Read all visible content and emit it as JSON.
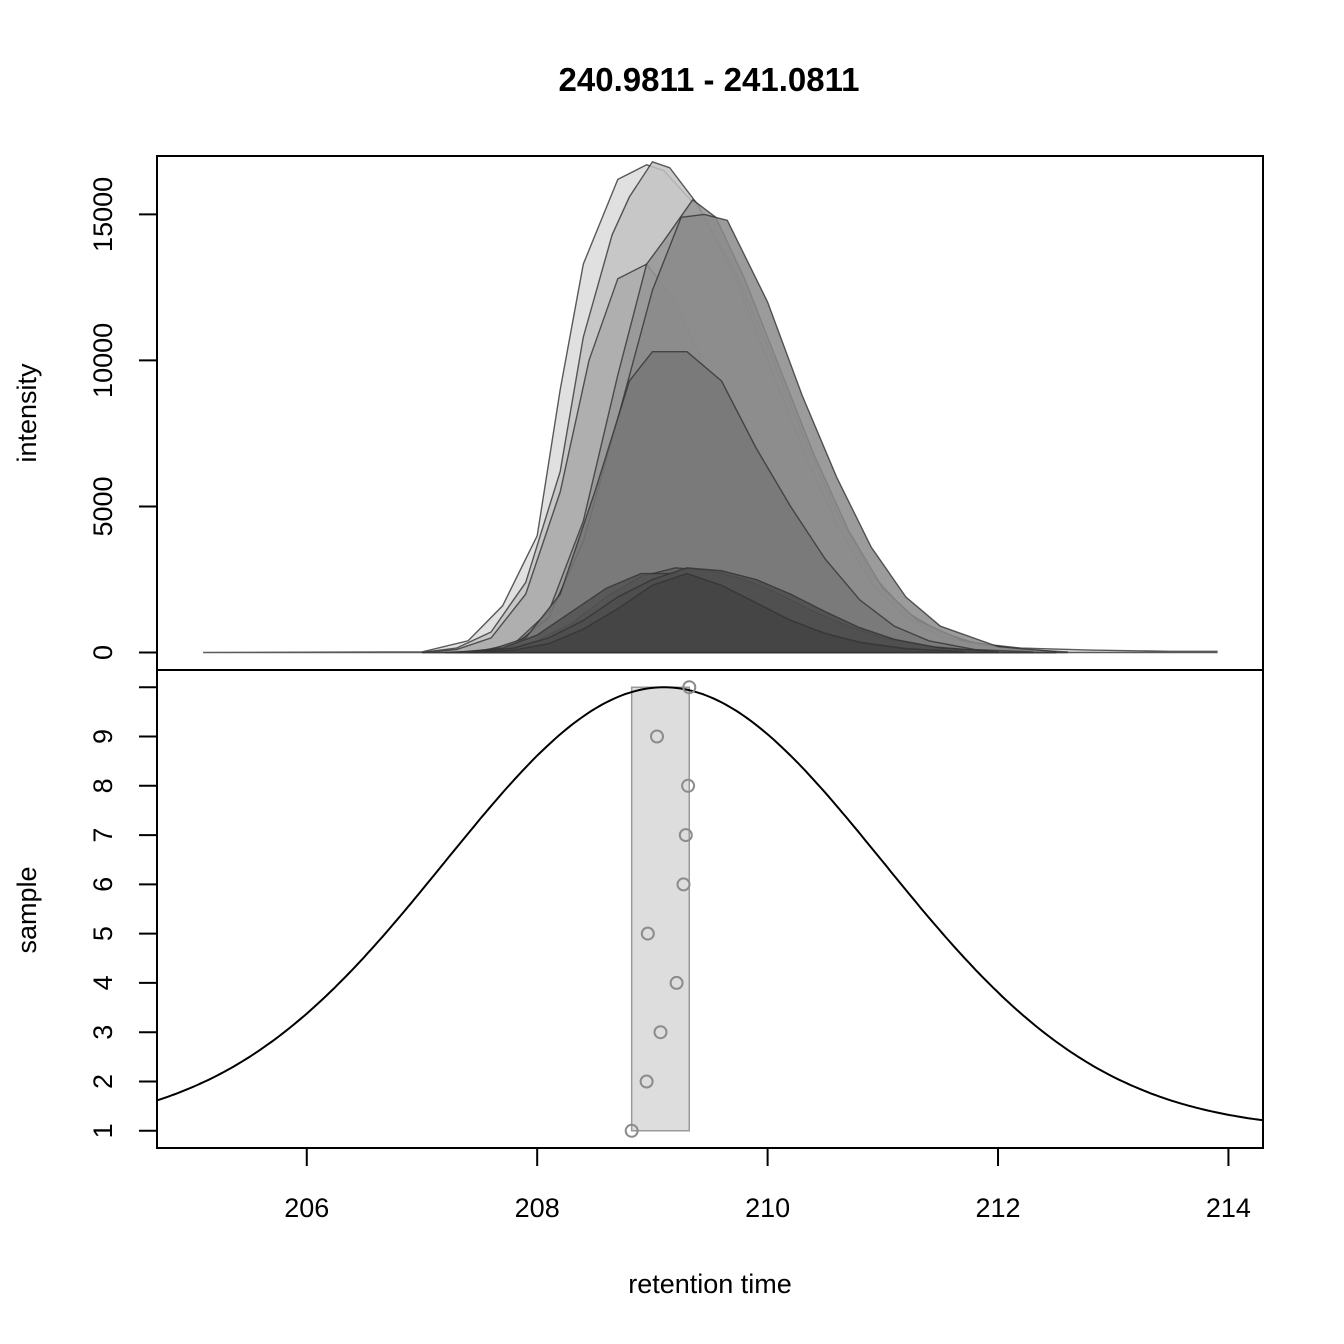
{
  "chart_data": [
    {
      "panel": "top",
      "type": "area",
      "title": "240.9811 - 241.0811",
      "xlabel": "",
      "ylabel": "intensity",
      "xlim": [
        204.7,
        214.3
      ],
      "ylim": [
        -600,
        17000
      ],
      "y_ticks": [
        0,
        5000,
        10000,
        15000
      ],
      "y_tick_labels": [
        "0",
        "5000",
        "10000",
        "15000"
      ],
      "grid": false,
      "series": [
        {
          "fill": "#dadada",
          "x": [
            205.1,
            207.0,
            207.4,
            207.7,
            208.0,
            208.2,
            208.4,
            208.7,
            208.95,
            209.1,
            209.4,
            209.7,
            210.0,
            210.3,
            210.6,
            210.9,
            211.2,
            211.5,
            211.8,
            212.2,
            212.8,
            213.5,
            213.9
          ],
          "y": [
            0,
            20,
            400,
            1600,
            4000,
            9000,
            13300,
            16200,
            16700,
            16500,
            15200,
            13200,
            10500,
            7500,
            4800,
            2700,
            1400,
            700,
            320,
            150,
            80,
            40,
            40
          ]
        },
        {
          "fill": "#c2c2c2",
          "x": [
            207.0,
            207.3,
            207.6,
            207.9,
            208.2,
            208.4,
            208.65,
            208.8,
            209.0,
            209.15,
            209.4,
            209.7,
            210.0,
            210.3,
            210.6,
            210.9,
            211.2,
            211.5,
            212.0,
            212.5
          ],
          "y": [
            0,
            150,
            700,
            2400,
            6200,
            10800,
            14300,
            15600,
            16800,
            16600,
            15300,
            13000,
            10000,
            7000,
            4400,
            2400,
            1200,
            550,
            150,
            30
          ]
        },
        {
          "fill": "#aaaaaa",
          "x": [
            207.0,
            207.3,
            207.6,
            207.9,
            208.2,
            208.45,
            208.7,
            208.95,
            209.2,
            209.45,
            209.7,
            210.0,
            210.3,
            210.6,
            210.9,
            211.2,
            211.5,
            212.0,
            212.5
          ],
          "y": [
            0,
            100,
            500,
            2000,
            5500,
            10000,
            12800,
            13300,
            12000,
            9800,
            7500,
            5300,
            3400,
            2000,
            1000,
            450,
            200,
            60,
            20
          ]
        },
        {
          "fill": "#969696",
          "x": [
            207.2,
            207.5,
            207.8,
            208.1,
            208.4,
            208.7,
            208.95,
            209.1,
            209.35,
            209.55,
            209.8,
            210.1,
            210.4,
            210.7,
            211.0,
            211.3,
            211.7,
            212.2,
            212.6
          ],
          "y": [
            0,
            50,
            300,
            1400,
            4500,
            9500,
            13300,
            14100,
            15500,
            14900,
            12800,
            9800,
            6800,
            4200,
            2200,
            1100,
            400,
            100,
            20
          ]
        },
        {
          "fill": "#8a8a8a",
          "x": [
            207.2,
            207.5,
            207.8,
            208.1,
            208.4,
            208.7,
            209.0,
            209.25,
            209.45,
            209.65,
            210.0,
            210.3,
            210.6,
            210.9,
            211.2,
            211.5,
            212.0,
            212.5
          ],
          "y": [
            0,
            30,
            250,
            1200,
            3800,
            8000,
            12400,
            14900,
            15000,
            14800,
            12000,
            8800,
            6000,
            3600,
            1900,
            900,
            200,
            30
          ]
        },
        {
          "fill": "#777777",
          "x": [
            207.3,
            207.6,
            207.9,
            208.2,
            208.5,
            208.8,
            209.0,
            209.3,
            209.6,
            209.9,
            210.2,
            210.5,
            210.8,
            211.1,
            211.4,
            211.8,
            212.3
          ],
          "y": [
            0,
            100,
            500,
            2000,
            5500,
            9300,
            10300,
            10300,
            9300,
            7000,
            5000,
            3200,
            1800,
            900,
            400,
            100,
            20
          ]
        },
        {
          "fill": "#5e5e5e",
          "x": [
            207.3,
            207.7,
            208.0,
            208.3,
            208.6,
            208.9,
            209.2,
            209.5,
            209.8,
            210.1,
            210.4,
            210.7,
            211.0,
            211.4,
            211.9
          ],
          "y": [
            0,
            100,
            400,
            1000,
            1900,
            2600,
            2900,
            2800,
            2500,
            2000,
            1400,
            900,
            500,
            200,
            50
          ]
        },
        {
          "fill": "#545454",
          "x": [
            207.3,
            207.7,
            208.0,
            208.3,
            208.6,
            208.9,
            209.2,
            209.5,
            209.8,
            210.1,
            210.4,
            210.7,
            211.0,
            211.4,
            211.9
          ],
          "y": [
            0,
            150,
            600,
            1400,
            2200,
            2700,
            2700,
            2400,
            1900,
            1300,
            800,
            450,
            220,
            80,
            20
          ]
        },
        {
          "fill": "#4e4e4e",
          "x": [
            207.4,
            207.8,
            208.1,
            208.4,
            208.7,
            209.0,
            209.3,
            209.6,
            209.9,
            210.2,
            210.5,
            210.8,
            211.1,
            211.5,
            212.0
          ],
          "y": [
            0,
            150,
            500,
            1100,
            1900,
            2500,
            2900,
            2800,
            2500,
            2000,
            1400,
            850,
            450,
            150,
            30
          ]
        },
        {
          "fill": "#444444",
          "x": [
            207.4,
            207.8,
            208.1,
            208.4,
            208.7,
            209.0,
            209.3,
            209.6,
            209.9,
            210.2,
            210.5,
            210.8,
            211.2,
            211.7
          ],
          "y": [
            0,
            80,
            300,
            800,
            1500,
            2300,
            2700,
            2300,
            1700,
            1100,
            650,
            350,
            130,
            30
          ]
        }
      ]
    },
    {
      "panel": "bottom",
      "type": "scatter",
      "xlabel": "retention time",
      "ylabel": "sample",
      "xlim": [
        204.7,
        214.3
      ],
      "ylim": [
        0.65,
        10.35
      ],
      "x_ticks": [
        206,
        208,
        210,
        212,
        214
      ],
      "x_tick_labels": [
        "206",
        "208",
        "210",
        "212",
        "214"
      ],
      "y_ticks": [
        1,
        2,
        3,
        4,
        5,
        6,
        7,
        8,
        9,
        10
      ],
      "y_tick_labels": [
        "1",
        "2",
        "3",
        "4",
        "5",
        "6",
        "7",
        "8",
        "9",
        ""
      ],
      "grid": false,
      "points": {
        "x": [
          208.82,
          208.95,
          209.07,
          209.21,
          208.96,
          209.27,
          209.29,
          209.31,
          209.04,
          209.32
        ],
        "y": [
          1,
          2,
          3,
          4,
          5,
          6,
          7,
          8,
          9,
          10
        ]
      },
      "band": {
        "x_min": 208.82,
        "x_max": 209.32,
        "y_min": 1,
        "y_max": 10
      },
      "density_curve": {
        "center": 209.1,
        "sigma": 1.9,
        "base": 1.0,
        "peak": 10.0
      },
      "colors": {
        "points": "#8c8c8c",
        "band": "#dddddd",
        "band_stroke": "#9a9a9a",
        "curve": "#000000"
      }
    }
  ]
}
